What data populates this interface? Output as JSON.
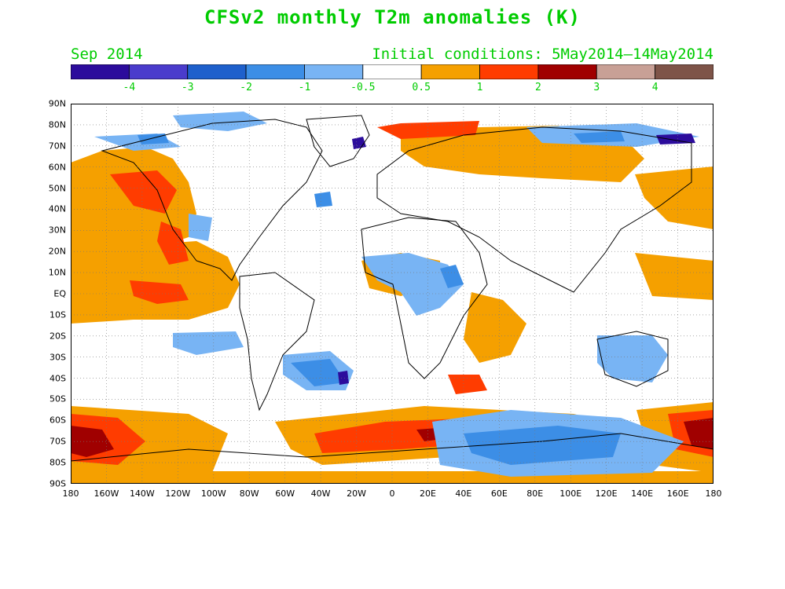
{
  "header": {
    "title": "CFSv2 monthly T2m anomalies (K)",
    "valid_month": "Sep 2014",
    "initial_conditions": "Initial conditions: 5May2014—14May2014"
  },
  "colorbar": {
    "labels": [
      "-4",
      "-3",
      "-2",
      "-1",
      "-0.5",
      "0.5",
      "1",
      "2",
      "3",
      "4"
    ],
    "colors": [
      "#2c0c9c",
      "#4a3ccc",
      "#1e60cc",
      "#3c8ee6",
      "#78b4f4",
      "#ffffff",
      "#f5a000",
      "#ff3c00",
      "#a00000",
      "#c8a096",
      "#7e5448"
    ]
  },
  "axes": {
    "lat_labels": [
      "90N",
      "80N",
      "70N",
      "60N",
      "50N",
      "40N",
      "30N",
      "20N",
      "10N",
      "EQ",
      "10S",
      "20S",
      "30S",
      "40S",
      "50S",
      "60S",
      "70S",
      "80S",
      "90S"
    ],
    "lon_labels": [
      "180",
      "160W",
      "140W",
      "120W",
      "100W",
      "80W",
      "60W",
      "40W",
      "20W",
      "0",
      "20E",
      "40E",
      "60E",
      "80E",
      "100E",
      "120E",
      "140E",
      "160E",
      "180"
    ]
  }
}
